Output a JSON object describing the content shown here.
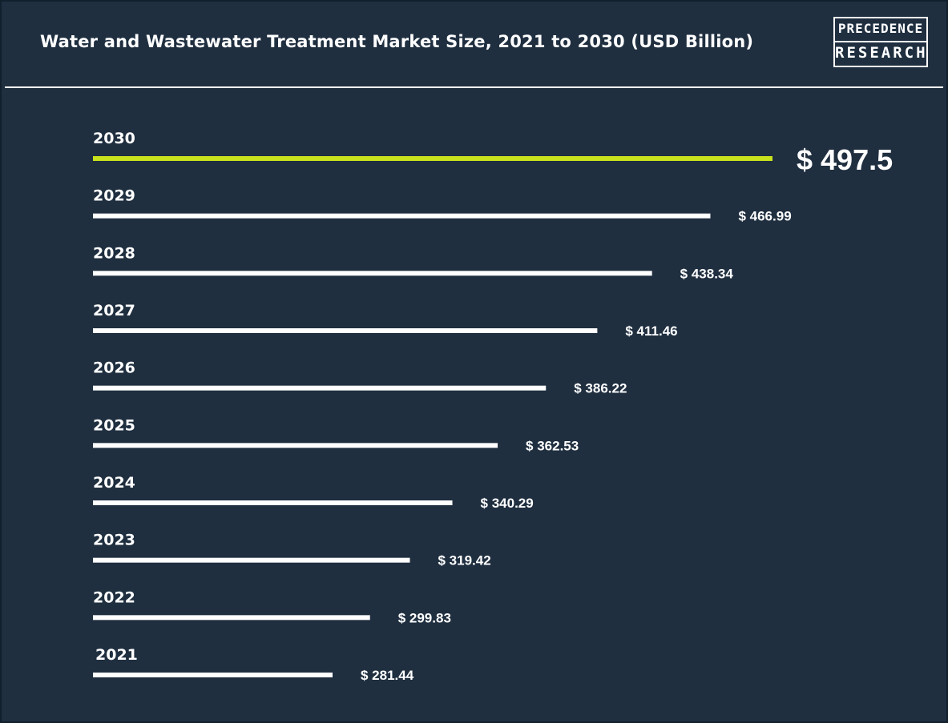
{
  "header": {
    "title": "Water and Wastewater Treatment Market Size, 2021 to 2030 (USD Billion)"
  },
  "logo": {
    "line1": "PRECEDENCE",
    "line2": "RESEARCH"
  },
  "colors": {
    "background": "#1f2f40",
    "bar": "#ffffff",
    "highlight_bar": "#c8e21c",
    "text": "#ffffff"
  },
  "chart_data": {
    "type": "bar",
    "orientation": "horizontal",
    "title": "Water and Wastewater Treatment Market Size, 2021 to 2030 (USD Billion)",
    "categories": [
      "2030",
      "2029",
      "2028",
      "2027",
      "2026",
      "2025",
      "2024",
      "2023",
      "2022",
      "2021"
    ],
    "values": [
      497.5,
      466.99,
      438.34,
      411.46,
      386.22,
      362.53,
      340.29,
      319.42,
      299.83,
      281.44
    ],
    "value_labels": [
      "$ 497.5",
      "$ 466.99",
      "$ 438.34",
      "$ 411.46",
      "$ 386.22",
      "$ 362.53",
      "$ 340.29",
      "$ 319.42",
      "$ 299.83",
      "$ 281.44"
    ],
    "highlight_category": "2030",
    "xlabel": "",
    "ylabel": "",
    "grid": false,
    "legend": "none"
  }
}
